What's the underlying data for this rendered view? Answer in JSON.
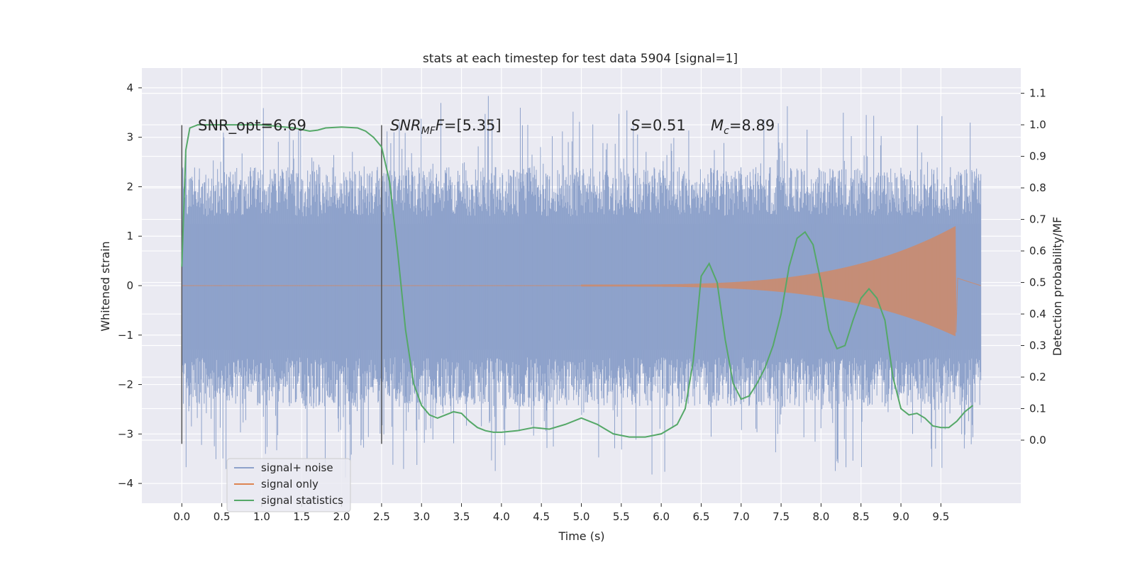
{
  "chart_data": {
    "type": "line",
    "title": "stats at each timestep for test data 5904 [signal=1]",
    "xlabel": "Time (s)",
    "ylabel": "Whitened strain",
    "ylabel_right": "Detection probability/MF",
    "xlim": [
      -0.5,
      10.5
    ],
    "ylim": [
      -4.4,
      4.4
    ],
    "ylim_right": [
      -0.2,
      1.18
    ],
    "x_ticks": [
      "0.0",
      "0.5",
      "1.0",
      "1.5",
      "2.0",
      "2.5",
      "3.0",
      "3.5",
      "4.0",
      "4.5",
      "5.0",
      "5.5",
      "6.0",
      "6.5",
      "7.0",
      "7.5",
      "8.0",
      "8.5",
      "9.0",
      "9.5"
    ],
    "y_ticks": [
      "4",
      "3",
      "2",
      "1",
      "0",
      "−1",
      "−2",
      "−3",
      "−4"
    ],
    "y_ticks_right": [
      "1.1",
      "1.0",
      "0.9",
      "0.8",
      "0.7",
      "0.6",
      "0.5",
      "0.4",
      "0.3",
      "0.2",
      "0.1",
      "0.0"
    ],
    "grid": true,
    "legend_position": "lower-left",
    "annotations": {
      "snr_opt": "SNR_opt=6.69",
      "snr_mf_main": "SNR",
      "snr_mf_sub": "MF",
      "snr_mf_rest": "=[5.35]",
      "s_main": "S",
      "s_rest": "=0.51",
      "mc_main": "M",
      "mc_sub": "c",
      "mc_rest": "=8.89"
    },
    "vertical_markers": [
      0.0,
      2.5
    ],
    "series": [
      {
        "name": "signal+ noise",
        "color": "#8ea2cb",
        "axis": "left",
        "envelope": {
          "t_start": 0.0,
          "t_end": 10.0,
          "typical_upper": 1.25,
          "typical_lower": -1.3,
          "spike_max": 4.0,
          "spike_min": -4.05
        }
      },
      {
        "name": "signal only",
        "color": "#dd8452",
        "axis": "left",
        "chirp": {
          "t_start": 5.0,
          "t_merger": 9.68,
          "amp_start": 0.02,
          "amp_merger": 1.2,
          "ringdown_min": -0.95
        }
      },
      {
        "name": "signal statistics",
        "color": "#55a868",
        "axis": "right",
        "x": [
          0.0,
          0.05,
          0.1,
          0.2,
          0.4,
          0.6,
          0.8,
          1.0,
          1.2,
          1.4,
          1.6,
          1.7,
          1.8,
          2.0,
          2.2,
          2.3,
          2.4,
          2.5,
          2.6,
          2.7,
          2.8,
          2.9,
          3.0,
          3.1,
          3.2,
          3.3,
          3.4,
          3.5,
          3.6,
          3.7,
          3.8,
          3.9,
          4.0,
          4.2,
          4.4,
          4.6,
          4.8,
          5.0,
          5.2,
          5.4,
          5.6,
          5.8,
          6.0,
          6.2,
          6.3,
          6.4,
          6.5,
          6.6,
          6.7,
          6.8,
          6.9,
          7.0,
          7.1,
          7.2,
          7.3,
          7.4,
          7.5,
          7.6,
          7.7,
          7.8,
          7.9,
          8.0,
          8.1,
          8.2,
          8.3,
          8.4,
          8.5,
          8.6,
          8.7,
          8.8,
          8.9,
          9.0,
          9.1,
          9.2,
          9.3,
          9.4,
          9.5,
          9.6,
          9.7,
          9.8,
          9.9
        ],
        "y": [
          0.55,
          0.92,
          0.99,
          1.0,
          1.0,
          1.0,
          1.0,
          1.0,
          0.995,
          0.99,
          0.98,
          0.983,
          0.99,
          0.993,
          0.99,
          0.98,
          0.96,
          0.93,
          0.82,
          0.6,
          0.35,
          0.18,
          0.11,
          0.08,
          0.07,
          0.08,
          0.09,
          0.085,
          0.06,
          0.04,
          0.03,
          0.025,
          0.025,
          0.03,
          0.04,
          0.035,
          0.05,
          0.07,
          0.05,
          0.02,
          0.01,
          0.01,
          0.02,
          0.05,
          0.1,
          0.25,
          0.52,
          0.56,
          0.5,
          0.32,
          0.18,
          0.13,
          0.14,
          0.18,
          0.23,
          0.3,
          0.4,
          0.55,
          0.64,
          0.66,
          0.62,
          0.5,
          0.35,
          0.29,
          0.3,
          0.38,
          0.45,
          0.48,
          0.45,
          0.38,
          0.2,
          0.1,
          0.08,
          0.085,
          0.07,
          0.045,
          0.04,
          0.04,
          0.06,
          0.09,
          0.11
        ]
      }
    ]
  }
}
